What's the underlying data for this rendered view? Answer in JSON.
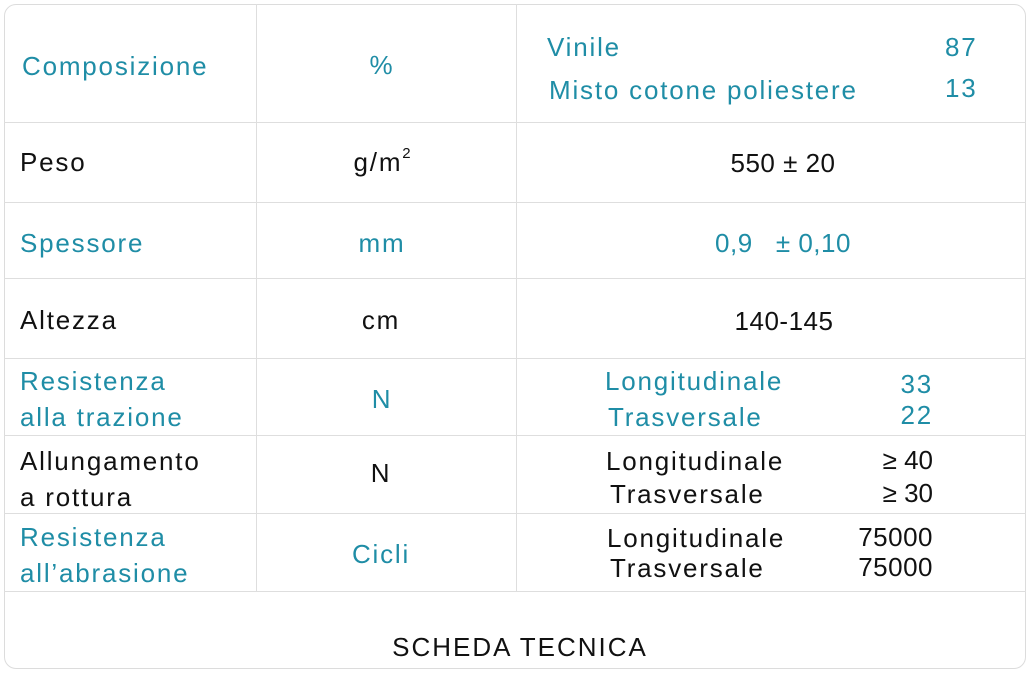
{
  "colors": {
    "accent": "#1f8da6",
    "text": "#111111",
    "border": "#dedede"
  },
  "rows": [
    {
      "name": "Composizione",
      "unit": "%",
      "values": [
        {
          "label": "Vinile",
          "value": "87"
        },
        {
          "label": "Misto cotone poliestere",
          "value": "13"
        }
      ]
    },
    {
      "name": "Peso",
      "unit_base": "g/m",
      "unit_sup": "2",
      "value": "550 ± 20"
    },
    {
      "name": "Spessore",
      "unit": "mm",
      "value": "0,9   ± 0,10"
    },
    {
      "name": "Altezza",
      "unit": "cm",
      "value": "140-145"
    },
    {
      "name_lines": [
        "Resistenza",
        "alla trazione"
      ],
      "unit": "N",
      "values": [
        {
          "label": "Longitudinale",
          "value": "33"
        },
        {
          "label": "Trasversale",
          "value": "22"
        }
      ]
    },
    {
      "name_lines": [
        "Allungamento",
        "a rottura"
      ],
      "unit": "N",
      "values": [
        {
          "label": "Longitudinale",
          "value": "≥ 40"
        },
        {
          "label": "Trasversale",
          "value": "≥ 30"
        }
      ]
    },
    {
      "name_lines": [
        "Resistenza",
        "all’abrasione"
      ],
      "unit": "Cicli",
      "values": [
        {
          "label": "Longitudinale",
          "value": "75000"
        },
        {
          "label": "Trasversale",
          "value": "75000"
        }
      ]
    }
  ],
  "footer": "SCHEDA TECNICA"
}
